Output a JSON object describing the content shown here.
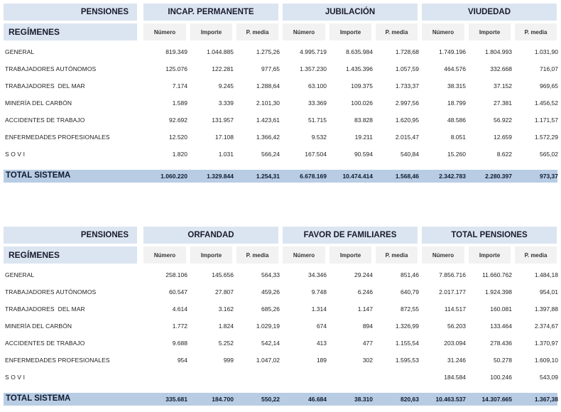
{
  "tables": [
    {
      "pensiones_label": "PENSIONES",
      "regimenes_label": "REGÍMENES",
      "groups": [
        {
          "title": "INCAP. PERMANENTE",
          "cols": [
            "Número",
            "Importe",
            "P. media"
          ]
        },
        {
          "title": "JUBILACIÓN",
          "cols": [
            "Número",
            "Importe",
            "P. media"
          ]
        },
        {
          "title": "VIUDEDAD",
          "cols": [
            "Número",
            "Importe",
            "P. media"
          ]
        }
      ],
      "rows": [
        {
          "label": "GENERAL",
          "values": [
            "819.349",
            "1.044.885",
            "1.275,26",
            "4.995.719",
            "8.635.984",
            "1.728,68",
            "1.749.196",
            "1.804.993",
            "1.031,90"
          ]
        },
        {
          "label": "TRABAJADORES AUTÓNOMOS",
          "values": [
            "125.076",
            "122.281",
            "977,65",
            "1.357.230",
            "1.435.396",
            "1.057,59",
            "464.576",
            "332.668",
            "716,07"
          ]
        },
        {
          "label": "TRABAJADORES  DEL MAR",
          "values": [
            "7.174",
            "9.245",
            "1.288,64",
            "63.100",
            "109.375",
            "1.733,37",
            "38.315",
            "37.152",
            "969,65"
          ]
        },
        {
          "label": "MINERÍA DEL CARBÓN",
          "values": [
            "1.589",
            "3.339",
            "2.101,30",
            "33.369",
            "100.026",
            "2.997,56",
            "18.799",
            "27.381",
            "1.456,52"
          ]
        },
        {
          "label": "ACCIDENTES DE TRABAJO",
          "values": [
            "92.692",
            "131.957",
            "1.423,61",
            "51.715",
            "83.828",
            "1.620,95",
            "48.586",
            "56.922",
            "1.171,57"
          ]
        },
        {
          "label": "ENFERMEDADES PROFESIONALES",
          "values": [
            "12.520",
            "17.108",
            "1.366,42",
            "9.532",
            "19.211",
            "2.015,47",
            "8.051",
            "12.659",
            "1.572,29"
          ]
        },
        {
          "label": "S O V I",
          "values": [
            "1.820",
            "1.031",
            "566,24",
            "167.504",
            "90.594",
            "540,84",
            "15.260",
            "8.622",
            "565,02"
          ]
        }
      ],
      "total": {
        "label": "TOTAL SISTEMA",
        "values": [
          "1.060.220",
          "1.329.844",
          "1.254,31",
          "6.678.169",
          "10.474.414",
          "1.568,46",
          "2.342.783",
          "2.280.397",
          "973,37"
        ]
      }
    },
    {
      "pensiones_label": "PENSIONES",
      "regimenes_label": "REGÍMENES",
      "groups": [
        {
          "title": "ORFANDAD",
          "cols": [
            "Número",
            "Importe",
            "P. media"
          ]
        },
        {
          "title": "FAVOR DE FAMILIARES",
          "cols": [
            "Número",
            "Importe",
            "P. media"
          ]
        },
        {
          "title": "TOTAL PENSIONES",
          "cols": [
            "Número",
            "Importe",
            "P. media"
          ]
        }
      ],
      "rows": [
        {
          "label": "GENERAL",
          "values": [
            "258.106",
            "145.656",
            "564,33",
            "34.346",
            "29.244",
            "851,46",
            "7.856.716",
            "11.660.762",
            "1.484,18"
          ]
        },
        {
          "label": "TRABAJADORES AUTÓNOMOS",
          "values": [
            "60.547",
            "27.807",
            "459,26",
            "9.748",
            "6.246",
            "640,79",
            "2.017.177",
            "1.924.398",
            "954,01"
          ]
        },
        {
          "label": "TRABAJADORES  DEL MAR",
          "values": [
            "4.614",
            "3.162",
            "685,26",
            "1.314",
            "1.147",
            "872,55",
            "114.517",
            "160.081",
            "1.397,88"
          ]
        },
        {
          "label": "MINERÍA DEL CARBÓN",
          "values": [
            "1.772",
            "1.824",
            "1.029,19",
            "674",
            "894",
            "1.326,99",
            "56.203",
            "133.464",
            "2.374,67"
          ]
        },
        {
          "label": "ACCIDENTES DE TRABAJO",
          "values": [
            "9.688",
            "5.252",
            "542,14",
            "413",
            "477",
            "1.155,54",
            "203.094",
            "278.436",
            "1.370,97"
          ]
        },
        {
          "label": "ENFERMEDADES PROFESIONALES",
          "values": [
            "954",
            "999",
            "1.047,02",
            "189",
            "302",
            "1.595,53",
            "31.246",
            "50.278",
            "1.609,10"
          ]
        },
        {
          "label": "S O V I",
          "values": [
            "",
            "",
            "",
            "",
            "",
            "",
            "184.584",
            "100.246",
            "543,09"
          ]
        }
      ],
      "total": {
        "label": "TOTAL SISTEMA",
        "values": [
          "335.681",
          "184.700",
          "550,22",
          "46.684",
          "38.310",
          "820,63",
          "10.463.537",
          "14.307.665",
          "1.367,38"
        ]
      }
    }
  ]
}
